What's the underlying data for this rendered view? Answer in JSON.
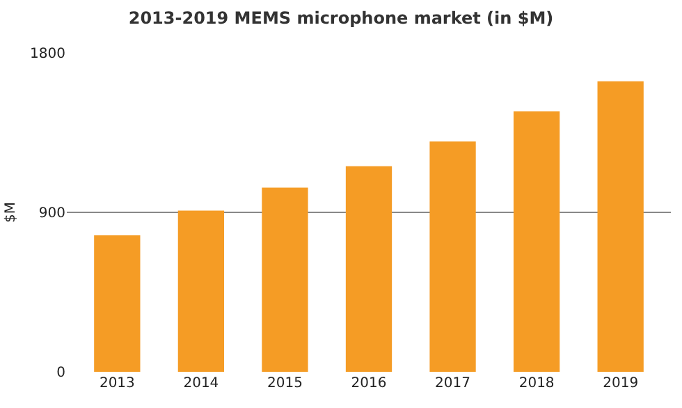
{
  "chart_data": {
    "type": "bar",
    "title": "2013-2019 MEMS microphone market (in $M)",
    "ylabel": "$M",
    "categories": [
      "2013",
      "2014",
      "2015",
      "2016",
      "2017",
      "2018",
      "2019"
    ],
    "values": [
      770,
      910,
      1040,
      1160,
      1300,
      1470,
      1640
    ],
    "color": "#f59c25",
    "ylim": [
      0,
      1800
    ],
    "yticks": [
      0,
      900,
      1800
    ],
    "grid": "y"
  }
}
